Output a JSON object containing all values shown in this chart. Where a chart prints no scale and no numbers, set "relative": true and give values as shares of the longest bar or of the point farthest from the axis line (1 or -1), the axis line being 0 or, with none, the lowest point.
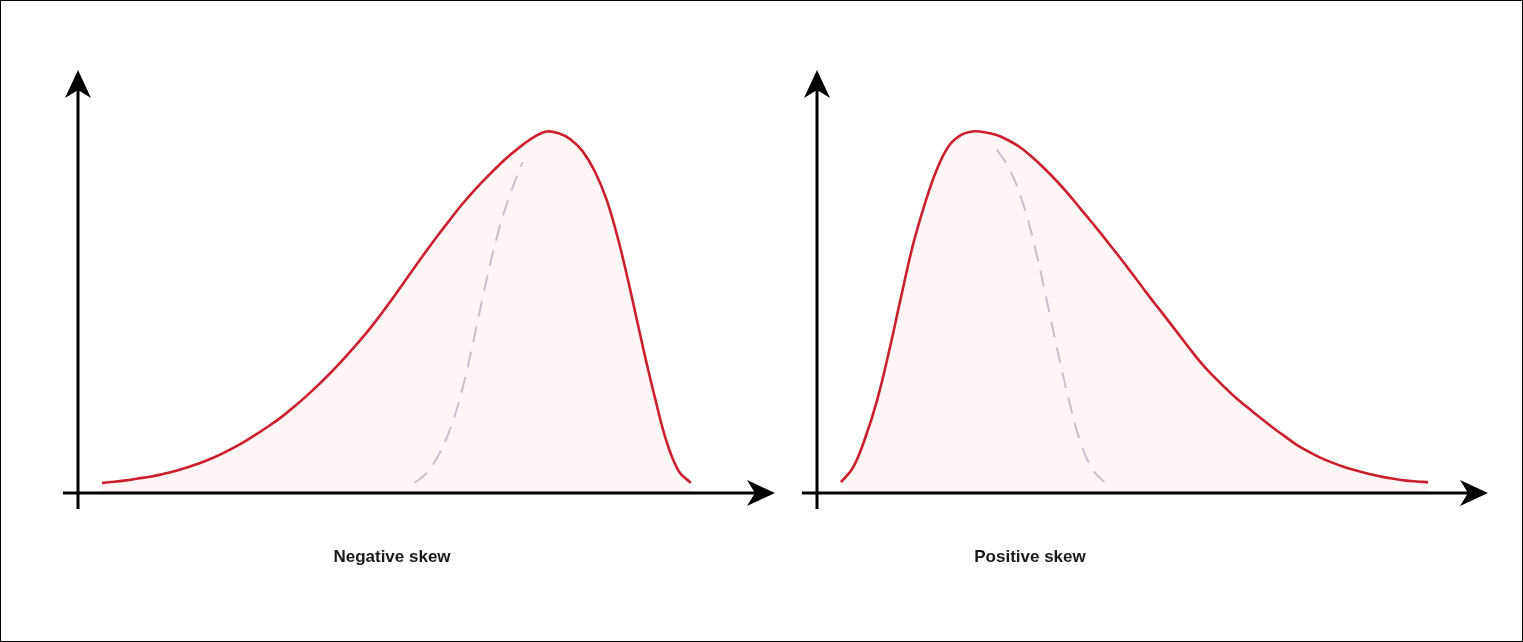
{
  "chart_data": [
    {
      "type": "area",
      "title": "Negative skew",
      "relative": true,
      "categories": [
        null,
        null,
        null,
        null,
        null,
        null,
        null,
        null,
        null,
        null,
        null,
        null,
        null,
        null,
        null,
        null,
        null,
        null,
        null,
        null,
        null,
        null,
        null,
        null,
        null,
        null,
        null,
        null,
        null,
        null,
        null,
        null,
        null,
        null,
        null,
        null,
        null,
        null,
        null,
        null,
        null,
        null,
        null,
        null,
        null,
        null,
        null,
        null,
        null,
        null,
        null,
        null,
        null,
        null,
        null,
        null,
        null,
        null,
        null
      ],
      "series": [
        {
          "color": "#cc1f2e",
          "values": [
            null,
            null,
            0.028,
            0.031,
            0.035,
            0.04,
            0.045,
            0.052,
            0.06,
            0.07,
            0.081,
            0.094,
            0.109,
            0.126,
            0.145,
            0.166,
            0.188,
            0.212,
            0.239,
            0.268,
            0.299,
            0.332,
            0.367,
            0.404,
            0.443,
            0.485,
            0.53,
            0.577,
            0.624,
            0.67,
            0.715,
            0.758,
            0.8,
            0.838,
            0.873,
            0.906,
            0.936,
            0.963,
            0.986,
            1.0,
            0.995,
            0.978,
            0.945,
            0.89,
            0.81,
            0.695,
            0.555,
            0.405,
            0.265,
            0.14,
            0.06,
            0.028,
            null,
            null,
            null,
            null,
            null,
            null,
            null
          ]
        },
        {
          "type": "line",
          "color": "#c8c8d0",
          "line_style": "dashed",
          "values": [
            null,
            null,
            null,
            null,
            null,
            null,
            null,
            null,
            null,
            null,
            null,
            null,
            null,
            null,
            null,
            null,
            null,
            null,
            null,
            null,
            null,
            null,
            null,
            null,
            null,
            null,
            null,
            null,
            0.028,
            0.055,
            0.105,
            0.18,
            0.29,
            0.435,
            0.59,
            0.725,
            0.83,
            0.915,
            null,
            null,
            null,
            null,
            null,
            null,
            null,
            null,
            null,
            null,
            null,
            null,
            null,
            null,
            null,
            null,
            null,
            null,
            null,
            null,
            null
          ]
        }
      ]
    },
    {
      "type": "area",
      "title": "Positive skew",
      "relative": true,
      "categories": [
        null,
        null,
        null,
        null,
        null,
        null,
        null,
        null,
        null,
        null,
        null,
        null,
        null,
        null,
        null,
        null,
        null,
        null,
        null,
        null,
        null,
        null,
        null,
        null,
        null,
        null,
        null,
        null,
        null,
        null,
        null,
        null,
        null,
        null,
        null,
        null,
        null,
        null,
        null,
        null,
        null,
        null,
        null,
        null,
        null,
        null,
        null,
        null,
        null,
        null,
        null,
        null,
        null,
        null,
        null,
        null,
        null
      ],
      "series": [
        {
          "color": "#cc1f2e",
          "values": [
            null,
            null,
            0.03,
            0.07,
            0.15,
            0.255,
            0.39,
            0.54,
            0.685,
            0.8,
            0.895,
            0.96,
            0.99,
            1.0,
            0.998,
            0.99,
            0.975,
            0.955,
            0.928,
            0.897,
            0.863,
            0.826,
            0.786,
            0.746,
            0.705,
            0.663,
            0.62,
            0.576,
            0.532,
            0.49,
            0.447,
            0.404,
            0.362,
            0.326,
            0.293,
            0.262,
            0.235,
            0.208,
            0.182,
            0.158,
            0.134,
            0.115,
            0.098,
            0.084,
            0.072,
            0.062,
            0.053,
            0.046,
            0.04,
            0.035,
            0.032,
            0.03,
            null,
            null,
            null,
            null,
            null
          ]
        },
        {
          "type": "line",
          "color": "#c8c8d0",
          "line_style": "dashed",
          "values": [
            null,
            null,
            null,
            null,
            null,
            null,
            null,
            null,
            null,
            null,
            null,
            null,
            null,
            null,
            null,
            0.95,
            0.9,
            0.82,
            0.705,
            0.56,
            0.405,
            0.26,
            0.14,
            0.065,
            0.03,
            null,
            null,
            null,
            null,
            null,
            null,
            null,
            null,
            null,
            null,
            null,
            null,
            null,
            null,
            null,
            null,
            null,
            null,
            null,
            null,
            null,
            null,
            null,
            null,
            null,
            null,
            null,
            null,
            null,
            null,
            null,
            null
          ]
        }
      ]
    }
  ]
}
